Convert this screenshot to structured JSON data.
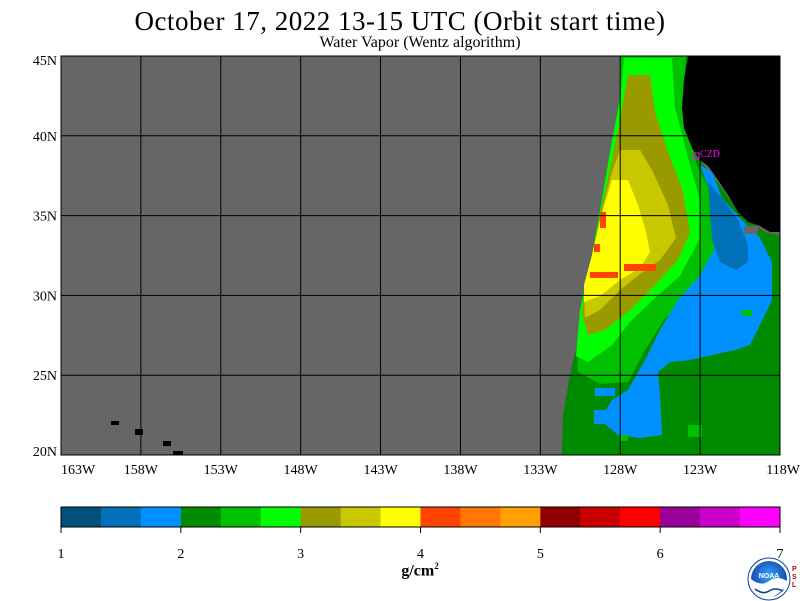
{
  "title": "October 17, 2022  13-15 UTC  (Orbit start time)",
  "subtitle": "Water Vapor (Wentz algorithm)",
  "map": {
    "lon_labels": [
      "163W",
      "158W",
      "153W",
      "148W",
      "143W",
      "138W",
      "133W",
      "128W",
      "123W",
      "118W"
    ],
    "lat_labels": [
      "45N",
      "40N",
      "35N",
      "30N",
      "25N",
      "20N"
    ],
    "lon_range": [
      -163,
      -118
    ],
    "lat_range": [
      20,
      45
    ],
    "station_label": "CZD",
    "colors": {
      "no_data": "#666666",
      "land": "#000000",
      "grid": "#000000",
      "station": "#ff00ff"
    }
  },
  "colorbar": {
    "unit_base": "g/cm",
    "unit_exp": "2",
    "tick_labels": [
      "1",
      "2",
      "3",
      "4",
      "5",
      "6",
      "7"
    ],
    "range": [
      1,
      7
    ],
    "colors": [
      "#00507a",
      "#0070b8",
      "#0090ff",
      "#008a00",
      "#00c000",
      "#00ff00",
      "#999900",
      "#c8c800",
      "#ffff00",
      "#ff4400",
      "#ff7700",
      "#ffa000",
      "#8f0000",
      "#c80000",
      "#ff0000",
      "#990099",
      "#c800c8",
      "#ff00ff"
    ]
  },
  "logo": {
    "text": "NOAA",
    "side_text": "PSL"
  }
}
